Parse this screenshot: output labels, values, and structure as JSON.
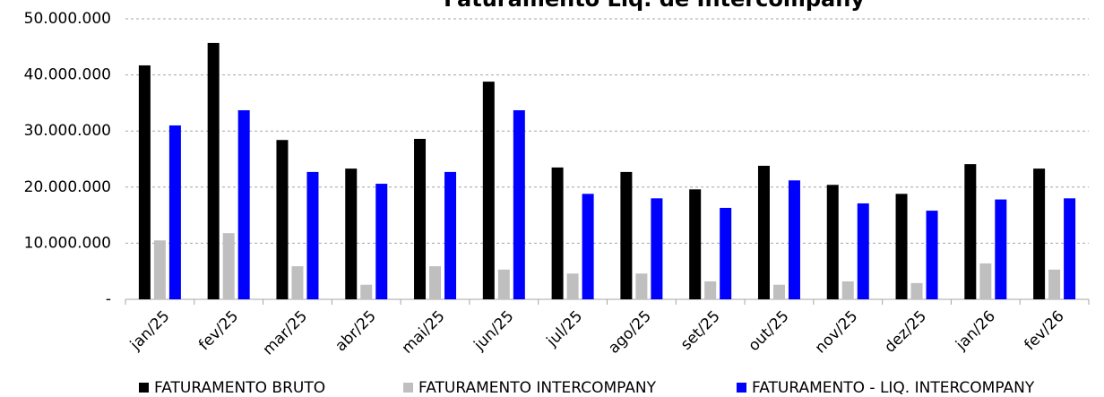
{
  "chart_data": {
    "type": "bar",
    "title": "Faturamento Líq. de Intercompany",
    "categories": [
      "jan/25",
      "fev/25",
      "mar/25",
      "abr/25",
      "mai/25",
      "jun/25",
      "jul/25",
      "ago/25",
      "set/25",
      "out/25",
      "nov/25",
      "dez/25",
      "jan/26",
      "fev/26"
    ],
    "series": [
      {
        "name": "FATURAMENTO BRUTO",
        "color": "#000000",
        "values": [
          41700000,
          45700000,
          28400000,
          23300000,
          28600000,
          38800000,
          23500000,
          22700000,
          19600000,
          23800000,
          20400000,
          18800000,
          24100000,
          23300000
        ]
      },
      {
        "name": "FATURAMENTO INTERCOMPANY",
        "color": "#bfbfbf",
        "values": [
          10500000,
          11800000,
          5900000,
          2600000,
          5900000,
          5300000,
          4600000,
          4600000,
          3200000,
          2600000,
          3200000,
          2900000,
          6400000,
          5300000
        ]
      },
      {
        "name": "FATURAMENTO - LIQ. INTERCOMPANY",
        "color": "#0000ff",
        "values": [
          31000000,
          33700000,
          22700000,
          20600000,
          22700000,
          33700000,
          18800000,
          18000000,
          16300000,
          21200000,
          17100000,
          15800000,
          17800000,
          18000000
        ]
      }
    ],
    "ylim": [
      0,
      50000000
    ],
    "yticks": [
      {
        "value": 0,
        "label": "-"
      },
      {
        "value": 10000000,
        "label": "10.000.000"
      },
      {
        "value": 20000000,
        "label": "20.000.000"
      },
      {
        "value": 30000000,
        "label": "30.000.000"
      },
      {
        "value": 40000000,
        "label": "40.000.000"
      },
      {
        "value": 50000000,
        "label": "50.000.000"
      }
    ],
    "grid": true,
    "legend": "bottom"
  }
}
